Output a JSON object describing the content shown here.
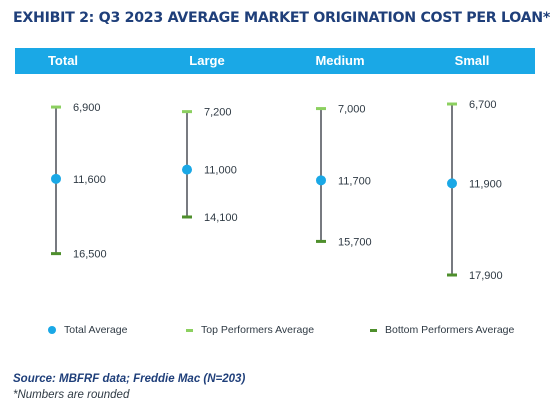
{
  "title": "EXHIBIT 2: Q3 2023 AVERAGE MARKET ORIGINATION COST PER LOAN*",
  "source": "Source: MBFRF data; Freddie Mac (N=203)",
  "note": "*Numbers are rounded",
  "colors": {
    "header": "#1aa8e6",
    "title": "#1f3f7a",
    "total_avg": "#1aa8e6",
    "top_perf": "#8cd060",
    "bottom_perf": "#4e8f2c",
    "axis": "#4a4f57"
  },
  "chart_data": {
    "type": "dot-range",
    "title": "EXHIBIT 2: Q3 2023 AVERAGE MARKET ORIGINATION COST PER LOAN*",
    "categories": [
      "Total",
      "Large",
      "Medium",
      "Small"
    ],
    "series": [
      {
        "name": "Total Average",
        "marker": "dot",
        "values": [
          11600,
          11000,
          11700,
          11900
        ],
        "labels": [
          "11,600",
          "11,000",
          "11,700",
          "11,900"
        ]
      },
      {
        "name": "Top Performers Average",
        "marker": "bar",
        "values": [
          6900,
          7200,
          7000,
          6700
        ],
        "labels": [
          "6,900",
          "7,200",
          "7,000",
          "6,700"
        ]
      },
      {
        "name": "Bottom Performers Average",
        "marker": "bar",
        "values": [
          16500,
          14100,
          15700,
          17900
        ],
        "labels": [
          "16,500",
          "14,100",
          "15,700",
          "17,900"
        ]
      }
    ],
    "ylim": [
      6700,
      17900
    ],
    "legend": "bottom",
    "grid": false
  }
}
